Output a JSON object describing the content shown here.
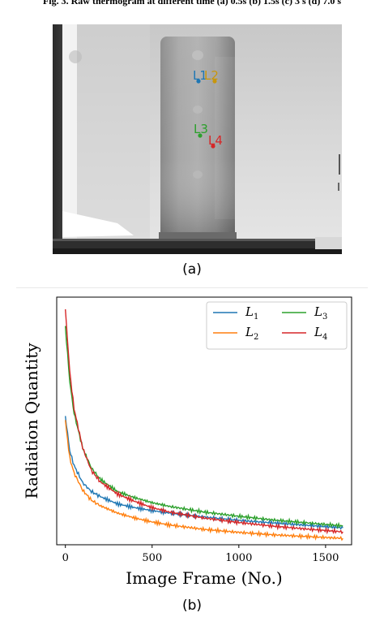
{
  "caption": "Fig. 3. Raw thermogram at different time (a) 0.5s (b) 1.5s (c) 3 s (d) 7.0 s",
  "image_a": {
    "markers": [
      {
        "label": "L1",
        "color": "#1f77b4"
      },
      {
        "label": "L2",
        "color": "#c8960c"
      },
      {
        "label": "L3",
        "color": "#2ca02c"
      },
      {
        "label": "L4",
        "color": "#d62728"
      }
    ]
  },
  "sub_labels": {
    "a": "(a)",
    "b": "(b)"
  },
  "chart_data": {
    "type": "line",
    "xlabel": "Image Frame (No.)",
    "ylabel": "Radiation Quantity",
    "xlim": [
      -50,
      1650
    ],
    "ylim": [
      0,
      1
    ],
    "xticks": [
      0,
      500,
      1000,
      1500
    ],
    "yticks_shown": false,
    "grid": false,
    "legend_position": "top-right",
    "series": [
      {
        "name": "L1",
        "subscript": "1",
        "color": "#1f77b4",
        "x": [
          0,
          25,
          50,
          100,
          150,
          200,
          300,
          400,
          500,
          600,
          800,
          1000,
          1200,
          1400,
          1600
        ],
        "y": [
          0.52,
          0.38,
          0.32,
          0.25,
          0.215,
          0.195,
          0.165,
          0.15,
          0.138,
          0.128,
          0.112,
          0.098,
          0.088,
          0.078,
          0.068
        ]
      },
      {
        "name": "L2",
        "subscript": "2",
        "color": "#ff7f0e",
        "x": [
          0,
          25,
          50,
          100,
          150,
          200,
          300,
          400,
          500,
          600,
          800,
          1000,
          1200,
          1400,
          1600
        ],
        "y": [
          0.5,
          0.35,
          0.29,
          0.22,
          0.18,
          0.158,
          0.128,
          0.108,
          0.092,
          0.08,
          0.062,
          0.05,
          0.04,
          0.033,
          0.026
        ]
      },
      {
        "name": "L3",
        "subscript": "3",
        "color": "#2ca02c",
        "x": [
          0,
          25,
          50,
          100,
          150,
          200,
          300,
          400,
          500,
          600,
          800,
          1000,
          1200,
          1400,
          1600
        ],
        "y": [
          0.88,
          0.66,
          0.53,
          0.39,
          0.31,
          0.265,
          0.215,
          0.19,
          0.17,
          0.155,
          0.132,
          0.115,
          0.1,
          0.088,
          0.076
        ]
      },
      {
        "name": "L4",
        "subscript": "4",
        "color": "#d62728",
        "x": [
          0,
          25,
          50,
          100,
          150,
          200,
          300,
          400,
          500,
          600,
          800,
          1000,
          1200,
          1400,
          1600
        ],
        "y": [
          0.95,
          0.7,
          0.55,
          0.39,
          0.3,
          0.255,
          0.205,
          0.175,
          0.15,
          0.132,
          0.108,
          0.09,
          0.075,
          0.063,
          0.052
        ]
      }
    ]
  }
}
